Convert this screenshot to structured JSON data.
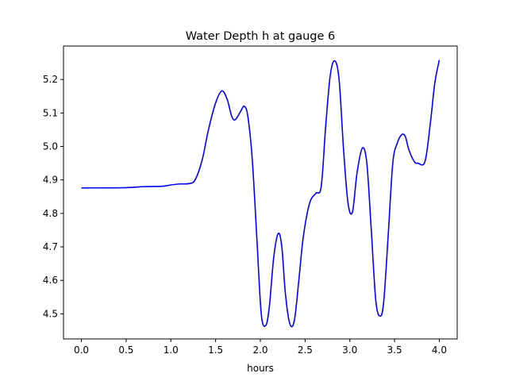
{
  "chart_data": {
    "type": "line",
    "title": "Water Depth h at gauge 6",
    "xlabel": "hours",
    "ylabel": "",
    "xlim": [
      -0.2,
      4.2
    ],
    "ylim": [
      4.425,
      5.3
    ],
    "xticks": [
      0.0,
      0.5,
      1.0,
      1.5,
      2.0,
      2.5,
      3.0,
      3.5,
      4.0
    ],
    "xtick_labels": [
      "0.0",
      "0.5",
      "1.0",
      "1.5",
      "2.0",
      "2.5",
      "3.0",
      "3.5",
      "4.0"
    ],
    "yticks": [
      4.5,
      4.6,
      4.7,
      4.8,
      4.9,
      5.0,
      5.1,
      5.2
    ],
    "ytick_labels": [
      "4.5",
      "4.6",
      "4.7",
      "4.8",
      "4.9",
      "5.0",
      "5.1",
      "5.2"
    ],
    "grid": false,
    "series": [
      {
        "color": "#0000ff",
        "x": [
          0.0,
          0.5,
          0.7,
          0.9,
          1.0,
          1.1,
          1.2,
          1.27,
          1.35,
          1.42,
          1.5,
          1.57,
          1.63,
          1.68,
          1.72,
          1.78,
          1.82,
          1.86,
          1.91,
          1.96,
          2.01,
          2.06,
          2.1,
          2.15,
          2.2,
          2.24,
          2.28,
          2.33,
          2.38,
          2.43,
          2.48,
          2.55,
          2.62,
          2.68,
          2.73,
          2.78,
          2.83,
          2.88,
          2.93,
          2.98,
          3.03,
          3.08,
          3.14,
          3.19,
          3.24,
          3.29,
          3.34,
          3.38,
          3.43,
          3.48,
          3.53,
          3.58,
          3.62,
          3.66,
          3.72,
          3.76,
          3.84,
          3.9,
          3.95,
          4.0
        ],
        "y": [
          4.876,
          4.877,
          4.88,
          4.881,
          4.885,
          4.888,
          4.889,
          4.9,
          4.96,
          5.05,
          5.13,
          5.166,
          5.14,
          5.09,
          5.08,
          5.105,
          5.12,
          5.09,
          4.96,
          4.73,
          4.5,
          4.465,
          4.52,
          4.67,
          4.74,
          4.7,
          4.56,
          4.47,
          4.48,
          4.6,
          4.73,
          4.83,
          4.86,
          4.88,
          5.06,
          5.21,
          5.256,
          5.2,
          4.99,
          4.83,
          4.805,
          4.92,
          4.995,
          4.95,
          4.75,
          4.54,
          4.493,
          4.54,
          4.74,
          4.95,
          5.01,
          5.035,
          5.03,
          4.99,
          4.955,
          4.95,
          4.955,
          5.07,
          5.19,
          5.258
        ]
      }
    ]
  }
}
